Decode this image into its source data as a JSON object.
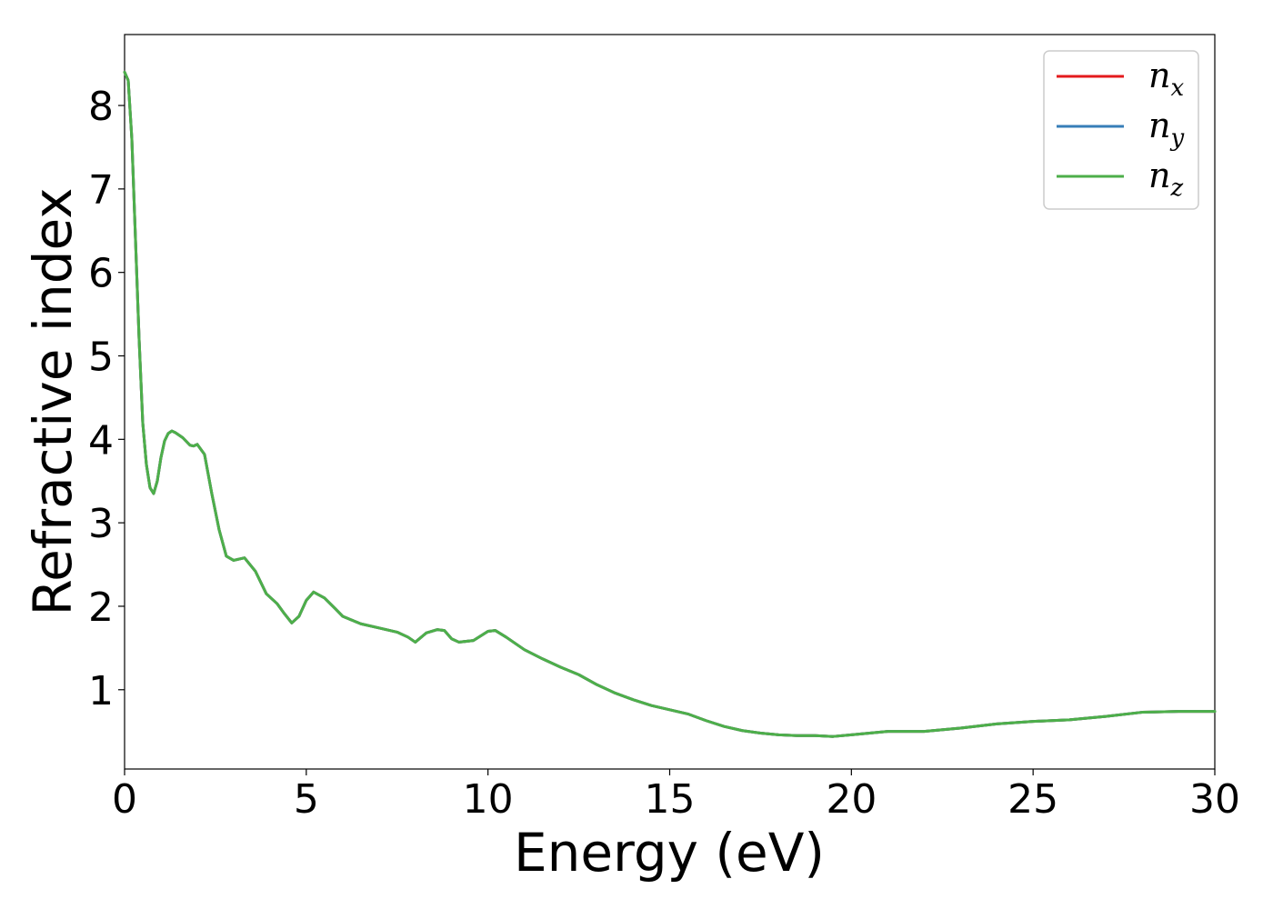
{
  "chart_data": {
    "type": "line",
    "xlabel": "Energy (eV)",
    "ylabel": "Refractive index",
    "xlim": [
      0,
      30
    ],
    "ylim": [
      0.05,
      8.85
    ],
    "xticks": [
      0,
      5,
      10,
      15,
      20,
      25,
      30
    ],
    "yticks": [
      1,
      2,
      3,
      4,
      5,
      6,
      7,
      8
    ],
    "grid": false,
    "legend_position": "top-right",
    "series": [
      {
        "name": "n",
        "subscript": "x",
        "color": "#e41a1c",
        "x": [
          0,
          0.1,
          0.2,
          0.3,
          0.4,
          0.5,
          0.6,
          0.7,
          0.8,
          0.9,
          1.0,
          1.1,
          1.2,
          1.3,
          1.4,
          1.6,
          1.8,
          1.9,
          2.0,
          2.2,
          2.4,
          2.6,
          2.8,
          3.0,
          3.3,
          3.6,
          3.9,
          4.2,
          4.4,
          4.6,
          4.8,
          5.0,
          5.2,
          5.5,
          5.8,
          6.0,
          6.5,
          7.0,
          7.5,
          7.8,
          8.0,
          8.3,
          8.6,
          8.8,
          9.0,
          9.2,
          9.6,
          10.0,
          10.2,
          10.5,
          11.0,
          11.5,
          12.0,
          12.5,
          13.0,
          13.5,
          14.0,
          14.5,
          15.0,
          15.5,
          16.0,
          16.5,
          17.0,
          17.5,
          18.0,
          18.5,
          19.0,
          19.5,
          20.0,
          20.5,
          21.0,
          22.0,
          23.0,
          24.0,
          25.0,
          26.0,
          27.0,
          28.0,
          29.0,
          30.0
        ],
        "values": [
          8.4,
          8.3,
          7.6,
          6.4,
          5.2,
          4.2,
          3.7,
          3.42,
          3.35,
          3.5,
          3.78,
          3.98,
          4.07,
          4.1,
          4.08,
          4.02,
          3.93,
          3.92,
          3.94,
          3.82,
          3.35,
          2.92,
          2.6,
          2.55,
          2.58,
          2.42,
          2.15,
          2.03,
          1.91,
          1.8,
          1.88,
          2.07,
          2.17,
          2.1,
          1.97,
          1.88,
          1.79,
          1.74,
          1.69,
          1.63,
          1.57,
          1.68,
          1.72,
          1.71,
          1.61,
          1.57,
          1.59,
          1.7,
          1.71,
          1.63,
          1.48,
          1.37,
          1.27,
          1.18,
          1.06,
          0.96,
          0.88,
          0.81,
          0.76,
          0.71,
          0.63,
          0.56,
          0.51,
          0.48,
          0.46,
          0.45,
          0.45,
          0.44,
          0.46,
          0.48,
          0.5,
          0.5,
          0.54,
          0.59,
          0.62,
          0.64,
          0.68,
          0.73,
          0.74,
          0.74
        ]
      },
      {
        "name": "n",
        "subscript": "y",
        "color": "#377eb8",
        "x": [
          0,
          0.1,
          0.2,
          0.3,
          0.4,
          0.5,
          0.6,
          0.7,
          0.8,
          0.9,
          1.0,
          1.1,
          1.2,
          1.3,
          1.4,
          1.6,
          1.8,
          1.9,
          2.0,
          2.2,
          2.4,
          2.6,
          2.8,
          3.0,
          3.3,
          3.6,
          3.9,
          4.2,
          4.4,
          4.6,
          4.8,
          5.0,
          5.2,
          5.5,
          5.8,
          6.0,
          6.5,
          7.0,
          7.5,
          7.8,
          8.0,
          8.3,
          8.6,
          8.8,
          9.0,
          9.2,
          9.6,
          10.0,
          10.2,
          10.5,
          11.0,
          11.5,
          12.0,
          12.5,
          13.0,
          13.5,
          14.0,
          14.5,
          15.0,
          15.5,
          16.0,
          16.5,
          17.0,
          17.5,
          18.0,
          18.5,
          19.0,
          19.5,
          20.0,
          20.5,
          21.0,
          22.0,
          23.0,
          24.0,
          25.0,
          26.0,
          27.0,
          28.0,
          29.0,
          30.0
        ],
        "values": [
          8.4,
          8.3,
          7.6,
          6.4,
          5.2,
          4.2,
          3.7,
          3.42,
          3.35,
          3.5,
          3.78,
          3.98,
          4.07,
          4.1,
          4.08,
          4.02,
          3.93,
          3.92,
          3.94,
          3.82,
          3.35,
          2.92,
          2.6,
          2.55,
          2.58,
          2.42,
          2.15,
          2.03,
          1.91,
          1.8,
          1.88,
          2.07,
          2.17,
          2.1,
          1.97,
          1.88,
          1.79,
          1.74,
          1.69,
          1.63,
          1.57,
          1.68,
          1.72,
          1.71,
          1.61,
          1.57,
          1.59,
          1.7,
          1.71,
          1.63,
          1.48,
          1.37,
          1.27,
          1.18,
          1.06,
          0.96,
          0.88,
          0.81,
          0.76,
          0.71,
          0.63,
          0.56,
          0.51,
          0.48,
          0.46,
          0.45,
          0.45,
          0.44,
          0.46,
          0.48,
          0.5,
          0.5,
          0.54,
          0.59,
          0.62,
          0.64,
          0.68,
          0.73,
          0.74,
          0.74
        ]
      },
      {
        "name": "n",
        "subscript": "z",
        "color": "#4daf4a",
        "x": [
          0,
          0.1,
          0.2,
          0.3,
          0.4,
          0.5,
          0.6,
          0.7,
          0.8,
          0.9,
          1.0,
          1.1,
          1.2,
          1.3,
          1.4,
          1.6,
          1.8,
          1.9,
          2.0,
          2.2,
          2.4,
          2.6,
          2.8,
          3.0,
          3.3,
          3.6,
          3.9,
          4.2,
          4.4,
          4.6,
          4.8,
          5.0,
          5.2,
          5.5,
          5.8,
          6.0,
          6.5,
          7.0,
          7.5,
          7.8,
          8.0,
          8.3,
          8.6,
          8.8,
          9.0,
          9.2,
          9.6,
          10.0,
          10.2,
          10.5,
          11.0,
          11.5,
          12.0,
          12.5,
          13.0,
          13.5,
          14.0,
          14.5,
          15.0,
          15.5,
          16.0,
          16.5,
          17.0,
          17.5,
          18.0,
          18.5,
          19.0,
          19.5,
          20.0,
          20.5,
          21.0,
          22.0,
          23.0,
          24.0,
          25.0,
          26.0,
          27.0,
          28.0,
          29.0,
          30.0
        ],
        "values": [
          8.4,
          8.3,
          7.6,
          6.4,
          5.2,
          4.2,
          3.7,
          3.42,
          3.35,
          3.5,
          3.78,
          3.98,
          4.07,
          4.1,
          4.08,
          4.02,
          3.93,
          3.92,
          3.94,
          3.82,
          3.35,
          2.92,
          2.6,
          2.55,
          2.58,
          2.42,
          2.15,
          2.03,
          1.91,
          1.8,
          1.88,
          2.07,
          2.17,
          2.1,
          1.97,
          1.88,
          1.79,
          1.74,
          1.69,
          1.63,
          1.57,
          1.68,
          1.72,
          1.71,
          1.61,
          1.57,
          1.59,
          1.7,
          1.71,
          1.63,
          1.48,
          1.37,
          1.27,
          1.18,
          1.06,
          0.96,
          0.88,
          0.81,
          0.76,
          0.71,
          0.63,
          0.56,
          0.51,
          0.48,
          0.46,
          0.45,
          0.45,
          0.44,
          0.46,
          0.48,
          0.5,
          0.5,
          0.54,
          0.59,
          0.62,
          0.64,
          0.68,
          0.73,
          0.74,
          0.74
        ]
      }
    ]
  }
}
